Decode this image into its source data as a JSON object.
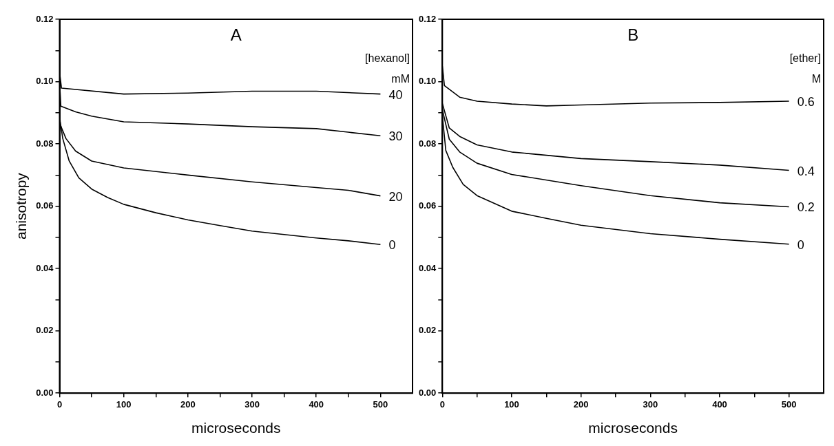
{
  "chart_data": [
    {
      "type": "line",
      "title": "A",
      "xlabel": "microseconds",
      "ylabel": "anisotropy",
      "annotations": [
        "[hexanol]",
        "mM"
      ],
      "legend": false,
      "grid": false,
      "marker": "none",
      "line_style": "solid",
      "xlim": [
        0,
        550
      ],
      "xticks": [
        0,
        {
          "value": 50,
          "label": null
        },
        100,
        {
          "value": 150,
          "label": null
        },
        200,
        {
          "value": 250,
          "label": null
        },
        300,
        {
          "value": 350,
          "label": null
        },
        400,
        {
          "value": 450,
          "label": null
        },
        500
      ],
      "ylim": [
        0,
        0.12
      ],
      "yticks": [
        {
          "value": 0,
          "label": "0.00"
        },
        {
          "value": 0.01,
          "label": null
        },
        {
          "value": 0.02,
          "label": "0.02"
        },
        {
          "value": 0.03,
          "label": null
        },
        {
          "value": 0.04,
          "label": "0.04"
        },
        {
          "value": 0.05,
          "label": null
        },
        {
          "value": 0.06,
          "label": "0.06"
        },
        {
          "value": 0.07,
          "label": null
        },
        {
          "value": 0.08,
          "label": "0.08"
        },
        {
          "value": 0.09,
          "label": null
        },
        {
          "value": 0.1,
          "label": "0.10"
        },
        {
          "value": 0.11,
          "label": null
        },
        {
          "value": 0.12,
          "label": "0.12"
        }
      ],
      "series": [
        {
          "name": "40",
          "color": "#000000",
          "x": [
            0,
            3,
            100,
            200,
            300,
            400,
            500
          ],
          "values": [
            0.103,
            0.0979,
            0.096,
            0.0963,
            0.0969,
            0.0969,
            0.096
          ]
        },
        {
          "name": "30",
          "color": "#000000",
          "x": [
            0,
            2,
            25,
            50,
            100,
            200,
            300,
            400,
            500
          ],
          "values": [
            0.1,
            0.0921,
            0.0903,
            0.0889,
            0.0871,
            0.0864,
            0.0855,
            0.0849,
            0.0826
          ]
        },
        {
          "name": "20",
          "color": "#000000",
          "x": [
            0,
            1,
            10,
            25,
            50,
            100,
            200,
            300,
            400,
            450,
            500
          ],
          "values": [
            0.092,
            0.0862,
            0.0817,
            0.0777,
            0.0745,
            0.0723,
            0.07,
            0.0678,
            0.066,
            0.0651,
            0.0633
          ]
        },
        {
          "name": "0",
          "color": "#000000",
          "x": [
            0,
            1,
            5,
            15,
            30,
            50,
            75,
            100,
            150,
            200,
            250,
            300,
            350,
            400,
            450,
            500
          ],
          "values": [
            0.09,
            0.0871,
            0.0817,
            0.0745,
            0.0691,
            0.0655,
            0.0628,
            0.0606,
            0.0579,
            0.0556,
            0.0538,
            0.052,
            0.0509,
            0.0498,
            0.0489,
            0.0477
          ]
        }
      ]
    },
    {
      "type": "line",
      "title": "B",
      "xlabel": "microseconds",
      "annotations": [
        "[ether]",
        "M"
      ],
      "legend": false,
      "grid": false,
      "marker": "none",
      "line_style": "solid",
      "xlim": [
        0,
        550
      ],
      "xticks": [
        0,
        {
          "value": 50,
          "label": null
        },
        100,
        {
          "value": 150,
          "label": null
        },
        200,
        {
          "value": 250,
          "label": null
        },
        300,
        {
          "value": 350,
          "label": null
        },
        400,
        {
          "value": 450,
          "label": null
        },
        500
      ],
      "ylim": [
        0,
        0.12
      ],
      "yticks": [
        {
          "value": 0,
          "label": "0.00"
        },
        {
          "value": 0.01,
          "label": null
        },
        {
          "value": 0.02,
          "label": "0.02"
        },
        {
          "value": 0.03,
          "label": null
        },
        {
          "value": 0.04,
          "label": "0.04"
        },
        {
          "value": 0.05,
          "label": null
        },
        {
          "value": 0.06,
          "label": "0.06"
        },
        {
          "value": 0.07,
          "label": null
        },
        {
          "value": 0.08,
          "label": "0.08"
        },
        {
          "value": 0.09,
          "label": null
        },
        {
          "value": 0.1,
          "label": "0.10"
        },
        {
          "value": 0.11,
          "label": null
        },
        {
          "value": 0.12,
          "label": "0.12"
        }
      ],
      "series": [
        {
          "name": "0.6",
          "color": "#000000",
          "x": [
            0,
            3,
            25,
            50,
            100,
            150,
            200,
            300,
            400,
            500
          ],
          "values": [
            0.105,
            0.0987,
            0.095,
            0.0937,
            0.0928,
            0.0922,
            0.0925,
            0.0931,
            0.0933,
            0.0937
          ]
        },
        {
          "name": "0.4",
          "color": "#000000",
          "x": [
            0,
            10,
            25,
            50,
            100,
            200,
            300,
            400,
            500
          ],
          "values": [
            0.093,
            0.0851,
            0.0824,
            0.0797,
            0.0774,
            0.0753,
            0.0743,
            0.0732,
            0.0715
          ]
        },
        {
          "name": "0.2",
          "color": "#000000",
          "x": [
            0,
            10,
            25,
            50,
            100,
            200,
            300,
            400,
            500
          ],
          "values": [
            0.091,
            0.0815,
            0.0774,
            0.0738,
            0.0702,
            0.0666,
            0.0634,
            0.0611,
            0.0598
          ]
        },
        {
          "name": "0",
          "color": "#000000",
          "x": [
            0,
            5,
            15,
            30,
            50,
            100,
            150,
            200,
            300,
            400,
            500
          ],
          "values": [
            0.089,
            0.0779,
            0.0725,
            0.067,
            0.0634,
            0.0584,
            0.0561,
            0.0539,
            0.0512,
            0.0494,
            0.0478
          ]
        }
      ]
    }
  ]
}
